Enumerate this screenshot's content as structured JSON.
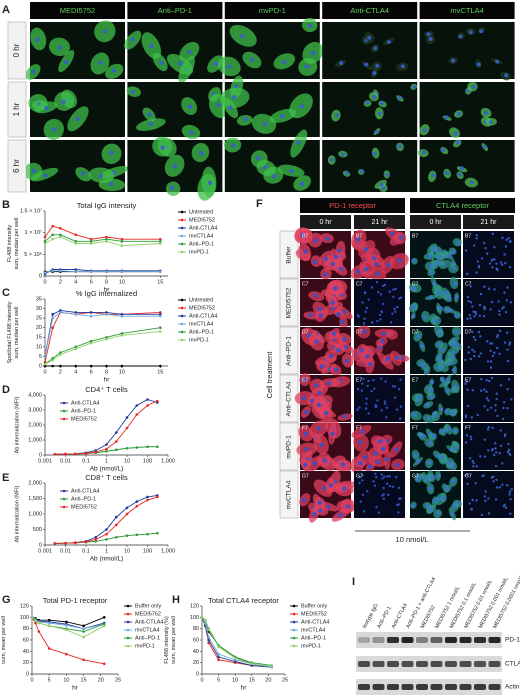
{
  "panel_a": {
    "label": "A",
    "columns": [
      "MEDI5752",
      "Anti–PD-1",
      "mvPD-1",
      "Anti-CTLA4",
      "mvCTLA4"
    ],
    "rows": [
      "0 hr",
      "1 hr",
      "6 hr"
    ]
  },
  "chart_data": [
    {
      "type": "line",
      "panel": "B",
      "title": "Total IgG intensity",
      "ylabel": [
        "FL488 intensity",
        "sum, median per well"
      ],
      "xlabel": "hr",
      "x": [
        0,
        1,
        2,
        4,
        6,
        8,
        10,
        15
      ],
      "xlim": [
        0,
        16
      ],
      "xticks": [
        0,
        2,
        4,
        6,
        8,
        10,
        15
      ],
      "ylim": [
        0,
        15000000
      ],
      "yticks": [
        0,
        {
          "value": 5000000,
          "label": "5 × 10⁶"
        },
        {
          "value": 10000000,
          "label": "1 × 10⁷"
        },
        {
          "value": 15000000,
          "label": "1.5 × 10⁷"
        }
      ],
      "series": [
        {
          "name": "Untreated",
          "color": "#000000",
          "values": [
            1000000,
            1000000,
            1000000,
            1000000,
            1000000,
            1000000,
            1000000,
            1000000
          ]
        },
        {
          "name": "MEDI5752",
          "color": "#e8271f",
          "values": [
            9000000,
            11500000,
            11000000,
            9500000,
            8500000,
            9000000,
            8500000,
            8500000
          ]
        },
        {
          "name": "Anti-CTLA4",
          "color": "#1f3b9c",
          "values": [
            500000,
            1500000,
            1500000,
            1500000,
            1200000,
            1200000,
            1200000,
            1200000
          ]
        },
        {
          "name": "mvCTLA4",
          "color": "#6fa8dc",
          "values": [
            800000,
            1200000,
            1200000,
            1000000,
            1000000,
            1000000,
            1000000,
            1000000
          ]
        },
        {
          "name": "Anti–PD-1",
          "color": "#2e9b3a",
          "values": [
            8000000,
            9500000,
            9500000,
            8000000,
            8000000,
            8500000,
            8000000,
            8000000
          ]
        },
        {
          "name": "mvPD-1",
          "color": "#8fd16a",
          "values": [
            7500000,
            8500000,
            9000000,
            7500000,
            7500000,
            8000000,
            7000000,
            7500000
          ]
        }
      ]
    },
    {
      "type": "line",
      "panel": "C",
      "title": "% IgG internalized",
      "ylabel": [
        "Spot/total FL488 intensity",
        "sum, median per well"
      ],
      "xlabel": "hr",
      "x": [
        0,
        1,
        2,
        4,
        6,
        8,
        10,
        15
      ],
      "xlim": [
        0,
        16
      ],
      "xticks": [
        0,
        2,
        4,
        6,
        8,
        10,
        15
      ],
      "ylim": [
        0,
        35
      ],
      "yticks": [
        0,
        5,
        10,
        15,
        20,
        25,
        30,
        35
      ],
      "series": [
        {
          "name": "Untreated",
          "color": "#000000",
          "values": [
            0,
            0,
            0,
            0,
            0,
            0,
            0,
            0
          ]
        },
        {
          "name": "MEDI5752",
          "color": "#e8271f",
          "values": [
            2,
            20,
            28,
            27,
            28,
            27,
            27,
            28
          ]
        },
        {
          "name": "Anti-CTLA4",
          "color": "#1f3b9c",
          "values": [
            5,
            27,
            29,
            28,
            28,
            28,
            27,
            27
          ]
        },
        {
          "name": "mvCTLA4",
          "color": "#6fa8dc",
          "values": [
            5,
            25,
            28,
            27,
            26,
            27,
            26,
            26
          ]
        },
        {
          "name": "Anti–PD-1",
          "color": "#2e9b3a",
          "values": [
            1,
            4,
            7,
            10,
            13,
            15,
            17,
            20
          ]
        },
        {
          "name": "mvPD-1",
          "color": "#8fd16a",
          "values": [
            1,
            3,
            6,
            9,
            12,
            14,
            16,
            18
          ]
        }
      ]
    },
    {
      "type": "line",
      "panel": "D",
      "title": "CD4⁺ T cells",
      "ylabel": [
        "Ab internalization (MFI)"
      ],
      "xlabel": "Ab (nmol/L)",
      "xscale": "log",
      "x": [
        0.003,
        0.01,
        0.03,
        0.1,
        0.3,
        1,
        3,
        10,
        30,
        100,
        300
      ],
      "xlim": [
        0.001,
        1000
      ],
      "xticks": [
        0.001,
        0.01,
        0.1,
        1,
        10,
        100,
        {
          "value": 1000,
          "label": "1,000"
        }
      ],
      "ylim": [
        0,
        4000
      ],
      "yticks": [
        0,
        {
          "value": 1000,
          "label": "1,000"
        },
        {
          "value": 2000,
          "label": "2,000"
        },
        {
          "value": 3000,
          "label": "3,000"
        },
        {
          "value": 4000,
          "label": "4,000"
        }
      ],
      "series": [
        {
          "name": "Anti-CTLA4",
          "color": "#1f3b9c",
          "values": [
            50,
            60,
            80,
            150,
            300,
            700,
            1500,
            2500,
            3300,
            3700,
            3500
          ]
        },
        {
          "name": "Anti–PD-1",
          "color": "#2e9b3a",
          "values": [
            50,
            60,
            70,
            100,
            150,
            250,
            350,
            450,
            500,
            550,
            550
          ]
        },
        {
          "name": "MEDI5752",
          "color": "#e8271f",
          "values": [
            50,
            60,
            70,
            100,
            200,
            400,
            900,
            1800,
            2700,
            3300,
            3600
          ]
        }
      ]
    },
    {
      "type": "line",
      "panel": "E",
      "title": "CD8⁺ T cells",
      "ylabel": [
        "Ab internalization (MFI)"
      ],
      "xlabel": "Ab (nmol/L)",
      "xscale": "log",
      "x": [
        0.003,
        0.01,
        0.03,
        0.1,
        0.3,
        1,
        3,
        10,
        30,
        100,
        300
      ],
      "xlim": [
        0.001,
        1000
      ],
      "xticks": [
        0.001,
        0.01,
        0.1,
        1,
        10,
        100,
        {
          "value": 1000,
          "label": "1,000"
        }
      ],
      "ylim": [
        0,
        2000
      ],
      "yticks": [
        0,
        500,
        {
          "value": 1000,
          "label": "1,000"
        },
        {
          "value": 1500,
          "label": "1,500"
        },
        {
          "value": 2000,
          "label": "2,000"
        }
      ],
      "series": [
        {
          "name": "Anti-CTLA4",
          "color": "#1f3b9c",
          "values": [
            50,
            60,
            80,
            120,
            250,
            500,
            900,
            1200,
            1400,
            1550,
            1600
          ]
        },
        {
          "name": "Anti–PD-1",
          "color": "#2e9b3a",
          "values": [
            50,
            60,
            70,
            90,
            120,
            180,
            250,
            300,
            330,
            350,
            380
          ]
        },
        {
          "name": "MEDI5752",
          "color": "#e8271f",
          "values": [
            50,
            60,
            70,
            100,
            180,
            350,
            650,
            1000,
            1250,
            1450,
            1550
          ]
        }
      ]
    },
    {
      "type": "line",
      "panel": "G",
      "title": "Total PD-1 receptor",
      "ylabel": [
        "FL647 intensity (%)",
        "sum, mean per well"
      ],
      "xlabel": "hr",
      "x": [
        0,
        1,
        2,
        5,
        10,
        15,
        21
      ],
      "xlim": [
        0,
        25
      ],
      "xticks": [
        0,
        5,
        10,
        15,
        20,
        25
      ],
      "ylim": [
        0,
        120
      ],
      "yticks": [
        0,
        20,
        40,
        60,
        80,
        100,
        120
      ],
      "series": [
        {
          "name": "Buffer only",
          "color": "#000000",
          "values": [
            100,
            98,
            95,
            95,
            92,
            85,
            100
          ]
        },
        {
          "name": "MEDI5752",
          "color": "#e8271f",
          "values": [
            100,
            90,
            75,
            45,
            35,
            25,
            18
          ]
        },
        {
          "name": "Anti-CTLA4",
          "color": "#1f3b9c",
          "values": [
            100,
            97,
            93,
            92,
            88,
            80,
            90
          ]
        },
        {
          "name": "mvCTLA4",
          "color": "#6fa8dc",
          "values": [
            100,
            96,
            92,
            90,
            86,
            80,
            88
          ]
        },
        {
          "name": "Anti–PD-1",
          "color": "#2e9b3a",
          "values": [
            100,
            95,
            90,
            85,
            80,
            75,
            88
          ]
        },
        {
          "name": "mvPD-1",
          "color": "#8fd16a",
          "values": [
            100,
            94,
            90,
            85,
            78,
            65,
            85
          ]
        }
      ]
    },
    {
      "type": "line",
      "panel": "H",
      "title": "Total CTLA4 receptor",
      "ylabel": [
        "FL488 intensity (%)",
        "sum, mean per well"
      ],
      "xlabel": "hr",
      "x": [
        0,
        1,
        2,
        5,
        10,
        15,
        21
      ],
      "xlim": [
        0,
        25
      ],
      "xticks": [
        0,
        5,
        10,
        15,
        20,
        25
      ],
      "ylim": [
        0,
        120
      ],
      "yticks": [
        0,
        20,
        40,
        60,
        80,
        100,
        120
      ],
      "series": [
        {
          "name": "Buffer only",
          "color": "#000000",
          "values": [
            100,
            95,
            75,
            50,
            30,
            18,
            12
          ]
        },
        {
          "name": "MEDI5752",
          "color": "#e8271f",
          "values": [
            100,
            85,
            55,
            25,
            20,
            15,
            12
          ]
        },
        {
          "name": "Anti-CTLA4",
          "color": "#1f3b9c",
          "values": [
            100,
            85,
            60,
            30,
            22,
            15,
            12
          ]
        },
        {
          "name": "mvCTLA4",
          "color": "#6fa8dc",
          "values": [
            100,
            90,
            65,
            35,
            25,
            18,
            12
          ]
        },
        {
          "name": "Anti–PD-1",
          "color": "#2e9b3a",
          "values": [
            100,
            95,
            80,
            50,
            30,
            20,
            15
          ]
        },
        {
          "name": "mvPD-1",
          "color": "#8fd16a",
          "values": [
            100,
            95,
            78,
            48,
            28,
            18,
            14
          ]
        }
      ]
    }
  ],
  "panel_f": {
    "label": "F",
    "groups": [
      "PD-1 receptor",
      "CTLA4 receptor"
    ],
    "times": [
      "0 hr",
      "21 hr"
    ],
    "side_title": "Cell treatment",
    "rows": [
      {
        "name": "Buffer",
        "well": "B7"
      },
      {
        "name": "MEDI5752",
        "well": "C7"
      },
      {
        "name": "Anti–PD-1",
        "well": "D7"
      },
      {
        "name": "Anti–CTLA4",
        "well": "E7"
      },
      {
        "name": "mvPD-1",
        "well": "F7"
      },
      {
        "name": "mvCTLA4",
        "well": "G7"
      }
    ],
    "scale": "10 nmol/L"
  },
  "panel_i": {
    "label": "I",
    "lanes": [
      "Isotype IgG",
      "Anti–PD-1",
      "Anti-CTLA4",
      "Anti–PD-1 + anti-CTLA4",
      "MEDI5752",
      "MEDI5752 1 nmol/L",
      "MEDI5752 0.1 nmol/L",
      "MEDI5752 0.01 nmol/L",
      "MEDI5752 0.001 nmol/L",
      "MEDI5752 0.0001 nmol/L"
    ],
    "bands": [
      "PD-1",
      "CTLA4",
      "Actin"
    ]
  }
}
